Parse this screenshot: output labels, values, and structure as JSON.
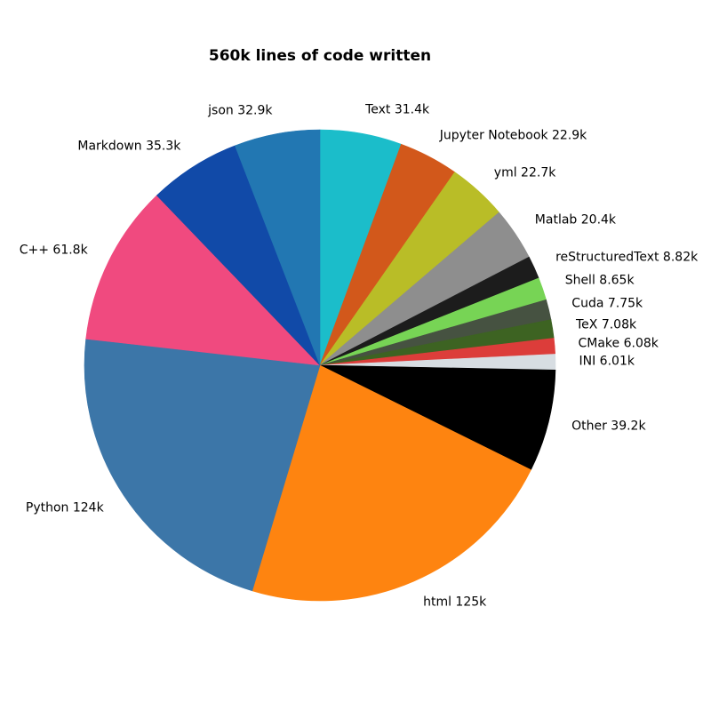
{
  "title": "560k lines of code written",
  "chart_data": {
    "type": "pie",
    "title": "560k lines of code written",
    "total": 560,
    "units": "k lines of code",
    "start_angle_deg": 90,
    "direction": "clockwise",
    "label_distance": 1.1,
    "legend": "none",
    "background_color": "#ffffff",
    "slices": [
      {
        "id": "text",
        "category": "Text",
        "value": 31.4,
        "label": "Text 31.4k",
        "color": "#1bbdca"
      },
      {
        "id": "jupyter-notebook",
        "category": "Jupyter Notebook",
        "value": 22.9,
        "label": "Jupyter Notebook 22.9k",
        "color": "#d2581b"
      },
      {
        "id": "yml",
        "category": "yml",
        "value": 22.7,
        "label": "yml 22.7k",
        "color": "#b9bd27"
      },
      {
        "id": "matlab",
        "category": "Matlab",
        "value": 20.4,
        "label": "Matlab 20.4k",
        "color": "#8e8e8e"
      },
      {
        "id": "restructuredtext",
        "category": "reStructuredText",
        "value": 8.82,
        "label": "reStructuredText 8.82k",
        "color": "#1c1c1c"
      },
      {
        "id": "shell",
        "category": "Shell",
        "value": 8.65,
        "label": "Shell 8.65k",
        "color": "#77d455"
      },
      {
        "id": "cuda",
        "category": "Cuda",
        "value": 7.75,
        "label": "Cuda 7.75k",
        "color": "#465241"
      },
      {
        "id": "tex",
        "category": "TeX",
        "value": 7.08,
        "label": "TeX 7.08k",
        "color": "#3d6322"
      },
      {
        "id": "cmake",
        "category": "CMake",
        "value": 6.08,
        "label": "CMake 6.08k",
        "color": "#dc3d3a"
      },
      {
        "id": "ini",
        "category": "INI",
        "value": 6.01,
        "label": "INI 6.01k",
        "color": "#d7dde2"
      },
      {
        "id": "other",
        "category": "Other",
        "value": 39.2,
        "label": "Other 39.2k",
        "color": "#000000"
      },
      {
        "id": "html",
        "category": "html",
        "value": 125,
        "label": "html 125k",
        "color": "#fe8410"
      },
      {
        "id": "python",
        "category": "Python",
        "value": 124,
        "label": "Python 124k",
        "color": "#3c76a8"
      },
      {
        "id": "cpp",
        "category": "C++",
        "value": 61.8,
        "label": "C++ 61.8k",
        "color": "#f04a7f"
      },
      {
        "id": "markdown",
        "category": "Markdown",
        "value": 35.3,
        "label": "Markdown 35.3k",
        "color": "#114aa8"
      },
      {
        "id": "json",
        "category": "json",
        "value": 32.9,
        "label": "json 32.9k",
        "color": "#2277b2"
      }
    ]
  }
}
